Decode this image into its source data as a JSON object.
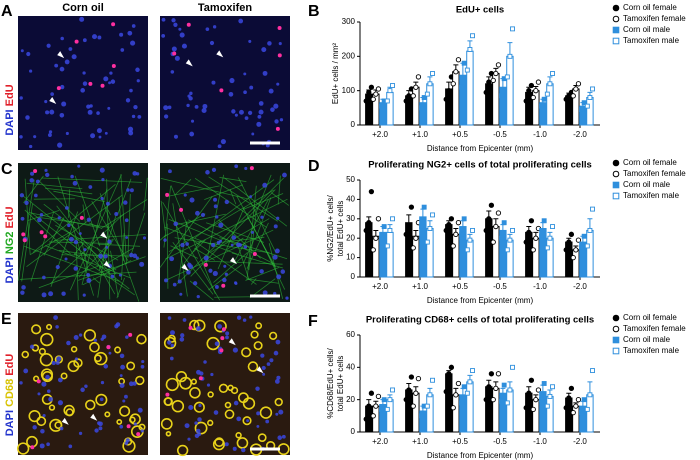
{
  "images": {
    "columns": [
      "Corn oil",
      "Tamoxifen"
    ],
    "rows": [
      {
        "letter": "A",
        "stain": [
          "DAPI",
          "EdU"
        ]
      },
      {
        "letter": "C",
        "stain": [
          "DAPI",
          "NG2",
          "EdU"
        ]
      },
      {
        "letter": "E",
        "stain": [
          "DAPI",
          "CD68",
          "EdU"
        ]
      }
    ]
  },
  "chart_data": [
    {
      "type": "bar",
      "panel": "B",
      "title": "EdU+ cells",
      "x_label": "Distance from Epicenter (mm)",
      "y_label": [
        "EdU+ cells / mm²"
      ],
      "categories": [
        "+2.0",
        "+1.0",
        "+0.5",
        "-0.5",
        "-1.0",
        "-2.0"
      ],
      "ylim": [
        0,
        300
      ],
      "yticks": [
        0,
        100,
        200,
        300
      ],
      "series": [
        {
          "name": "Corn oil female",
          "color": "#000000",
          "filled": true,
          "marker": "circle",
          "values": [
            90,
            85,
            105,
            120,
            95,
            85
          ],
          "errors": [
            12,
            15,
            20,
            20,
            15,
            8
          ],
          "points": [
            [
              70,
              95,
              110
            ],
            [
              70,
              85,
              105
            ],
            [
              75,
              100,
              140
            ],
            [
              95,
              125,
              150
            ],
            [
              70,
              100,
              115
            ],
            [
              75,
              85,
              95
            ]
          ]
        },
        {
          "name": "Tamoxifen female",
          "color": "#000000",
          "filled": false,
          "marker": "circle",
          "values": [
            90,
            110,
            155,
            150,
            100,
            105
          ],
          "errors": [
            12,
            15,
            20,
            15,
            12,
            10
          ],
          "points": [
            [
              75,
              90,
              105
            ],
            [
              85,
              110,
              140
            ],
            [
              120,
              155,
              190
            ],
            [
              130,
              150,
              175
            ],
            [
              80,
              100,
              125
            ],
            [
              85,
              105,
              120
            ]
          ]
        },
        {
          "name": "Corn oil male",
          "color": "#2f8fdd",
          "filled": true,
          "marker": "square",
          "values": [
            65,
            65,
            145,
            110,
            65,
            55
          ],
          "errors": [
            10,
            15,
            35,
            25,
            10,
            10
          ],
          "points": [
            [
              55,
              70
            ],
            [
              50,
              80
            ],
            [
              110,
              180
            ],
            [
              85,
              135
            ],
            [
              55,
              75
            ],
            [
              45,
              65
            ]
          ]
        },
        {
          "name": "Tamoxifen male",
          "color": "#2f8fdd",
          "filled": false,
          "marker": "square",
          "values": [
            95,
            120,
            215,
            200,
            120,
            80
          ],
          "errors": [
            15,
            20,
            30,
            40,
            20,
            15
          ],
          "points": [
            [
              70,
              100,
              115
            ],
            [
              90,
              120,
              150
            ],
            [
              160,
              220,
              260
            ],
            [
              140,
              200,
              280
            ],
            [
              90,
              120,
              150
            ],
            [
              55,
              80,
              105
            ]
          ]
        }
      ]
    },
    {
      "type": "bar",
      "panel": "D",
      "title": "Proliferating NG2+ cells of total proliferating cells",
      "x_label": "Distance from Epicenter (mm)",
      "y_label": [
        "%NG2/EdU+ cells/",
        "total EdU+ cells"
      ],
      "categories": [
        "+2.0",
        "+1.0",
        "+0.5",
        "-0.5",
        "-1.0",
        "-2.0"
      ],
      "ylim": [
        0,
        50
      ],
      "yticks": [
        0,
        10,
        20,
        30,
        40,
        50
      ],
      "series": [
        {
          "name": "Corn oil female",
          "color": "#000000",
          "filled": true,
          "marker": "circle",
          "values": [
            28,
            28,
            27,
            30,
            23,
            18
          ],
          "errors": [
            3,
            4,
            2,
            4,
            3,
            2
          ],
          "points": [
            [
              24,
              28,
              44
            ],
            [
              22,
              26,
              36
            ],
            [
              24,
              27,
              30
            ],
            [
              24,
              30,
              37
            ],
            [
              18,
              23,
              29
            ],
            [
              14,
              18,
              22
            ]
          ]
        },
        {
          "name": "Tamoxifen female",
          "color": "#000000",
          "filled": false,
          "marker": "circle",
          "values": [
            21,
            21,
            22,
            26,
            20,
            14
          ],
          "errors": [
            3,
            3,
            3,
            4,
            3,
            2
          ],
          "points": [
            [
              14,
              20,
              30
            ],
            [
              15,
              20,
              28
            ],
            [
              16,
              22,
              28
            ],
            [
              18,
              26,
              33
            ],
            [
              14,
              20,
              25
            ],
            [
              10,
              14,
              19
            ]
          ]
        },
        {
          "name": "Corn oil male",
          "color": "#2f8fdd",
          "filled": true,
          "marker": "square",
          "values": [
            23,
            31,
            26,
            24,
            25,
            18
          ],
          "errors": [
            3,
            4,
            3,
            3,
            3,
            3
          ],
          "points": [
            [
              20,
              26
            ],
            [
              26,
              36
            ],
            [
              22,
              30
            ],
            [
              20,
              28
            ],
            [
              21,
              29
            ],
            [
              15,
              21
            ]
          ]
        },
        {
          "name": "Tamoxifen male",
          "color": "#2f8fdd",
          "filled": false,
          "marker": "square",
          "values": [
            23,
            25,
            19,
            19,
            20,
            24
          ],
          "errors": [
            4,
            4,
            3,
            3,
            3,
            6
          ],
          "points": [
            [
              16,
              24,
              30
            ],
            [
              18,
              25,
              32
            ],
            [
              14,
              19,
              24
            ],
            [
              14,
              19,
              24
            ],
            [
              15,
              20,
              26
            ],
            [
              16,
              24,
              35
            ]
          ]
        }
      ]
    },
    {
      "type": "bar",
      "panel": "F",
      "title": "Proliferating CD68+ cells of total proliferating cells",
      "x_label": "Distance from Epicenter (mm)",
      "y_label": [
        "%CD68/EdU+ cells/",
        "total EdU+ cells"
      ],
      "categories": [
        "+2.0",
        "+1.0",
        "+0.5",
        "-0.5",
        "-1.0",
        "-2.0"
      ],
      "ylim": [
        0,
        60
      ],
      "yticks": [
        0,
        20,
        40,
        60
      ],
      "series": [
        {
          "name": "Corn oil female",
          "color": "#000000",
          "filled": true,
          "marker": "circle",
          "values": [
            16,
            26,
            36,
            28,
            24,
            21
          ],
          "errors": [
            4,
            4,
            2,
            4,
            4,
            3
          ],
          "points": [
            [
              8,
              16,
              24
            ],
            [
              20,
              26,
              34
            ],
            [
              25,
              36,
              40
            ],
            [
              20,
              28,
              36
            ],
            [
              15,
              24,
              32
            ],
            [
              15,
              21,
              27
            ]
          ]
        },
        {
          "name": "Tamoxifen female",
          "color": "#000000",
          "filled": false,
          "marker": "circle",
          "values": [
            16,
            24,
            23,
            27,
            20,
            16
          ],
          "errors": [
            3,
            4,
            4,
            4,
            3,
            2
          ],
          "points": [
            [
              10,
              16,
              22
            ],
            [
              16,
              24,
              33
            ],
            [
              15,
              23,
              30
            ],
            [
              20,
              27,
              36
            ],
            [
              14,
              20,
              26
            ],
            [
              12,
              16,
              20
            ]
          ]
        },
        {
          "name": "Corn oil male",
          "color": "#2f8fdd",
          "filled": true,
          "marker": "square",
          "values": [
            17,
            13,
            23,
            24,
            25,
            16
          ],
          "errors": [
            3,
            3,
            4,
            3,
            4,
            3
          ],
          "points": [
            [
              14,
              20
            ],
            [
              10,
              16
            ],
            [
              18,
              28
            ],
            [
              19,
              29
            ],
            [
              20,
              30
            ],
            [
              12,
              20
            ]
          ]
        },
        {
          "name": "Tamoxifen male",
          "color": "#2f8fdd",
          "filled": false,
          "marker": "square",
          "values": [
            20,
            23,
            31,
            26,
            22,
            23
          ],
          "errors": [
            3,
            4,
            4,
            5,
            4,
            8
          ],
          "points": [
            [
              14,
              20,
              26
            ],
            [
              16,
              23,
              32
            ],
            [
              24,
              31,
              38
            ],
            [
              18,
              26,
              40
            ],
            [
              16,
              22,
              28
            ],
            [
              14,
              23,
              38
            ]
          ]
        }
      ]
    }
  ]
}
